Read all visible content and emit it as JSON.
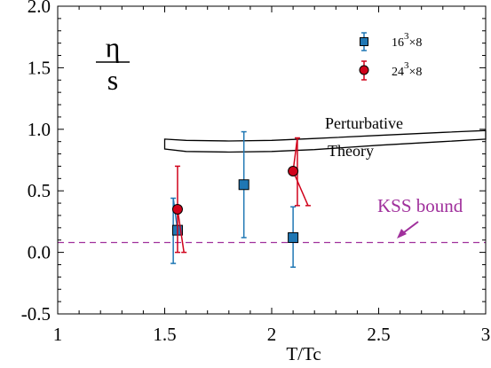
{
  "chart_data": {
    "type": "scatter",
    "xlabel": "T/Tc",
    "ylabel": "",
    "xlim": [
      1,
      3
    ],
    "ylim": [
      -0.5,
      2.0
    ],
    "x_ticks": [
      "1",
      "1.5",
      "2",
      "2.5",
      "3"
    ],
    "y_ticks": [
      "-0.5",
      "0.0",
      "0.5",
      "1.0",
      "1.5",
      "2.0"
    ],
    "grid": false,
    "legend_position": "top-right",
    "ratio_label": {
      "numerator": "η",
      "denominator": "s"
    },
    "series": [
      {
        "name": "16³×8",
        "color": "#1f77b4",
        "marker": "square",
        "points": [
          {
            "x": 1.56,
            "y": 0.18,
            "err_low": -0.09,
            "err_high": 0.44,
            "err_x": 1.54
          },
          {
            "x": 1.87,
            "y": 0.55,
            "err_low": 0.12,
            "err_high": 0.98,
            "err_x": 1.87
          },
          {
            "x": 2.1,
            "y": 0.12,
            "err_low": -0.12,
            "err_high": 0.37,
            "err_x": 2.1
          }
        ]
      },
      {
        "name": "24³×8",
        "color": "#d0021b",
        "marker": "circle",
        "points": [
          {
            "x": 1.56,
            "y": 0.35,
            "err_low": 0.0,
            "err_high": 0.7,
            "err_x": 1.56,
            "tail_x": 1.59
          },
          {
            "x": 2.1,
            "y": 0.66,
            "err_low": 0.38,
            "err_high": 0.93,
            "err_x": 2.12,
            "tail_x": 2.17
          }
        ]
      }
    ],
    "legend": [
      {
        "label_base": "16",
        "label_sup": "3",
        "label_tail": "×8"
      },
      {
        "label_base": "24",
        "label_sup": "3",
        "label_tail": "×8"
      }
    ],
    "kss_bound": {
      "label": "KSS bound",
      "y": 0.08,
      "color": "#a0309c"
    },
    "perturbative_band": {
      "label_line1": "Perturbative",
      "label_line2": "Theory",
      "x": [
        1.5,
        1.6,
        1.8,
        2.0,
        2.2,
        2.5,
        2.8,
        3.0
      ],
      "y_low": [
        0.84,
        0.82,
        0.815,
        0.82,
        0.835,
        0.87,
        0.9,
        0.92
      ],
      "y_high": [
        0.92,
        0.91,
        0.905,
        0.91,
        0.925,
        0.95,
        0.975,
        0.99
      ]
    }
  }
}
